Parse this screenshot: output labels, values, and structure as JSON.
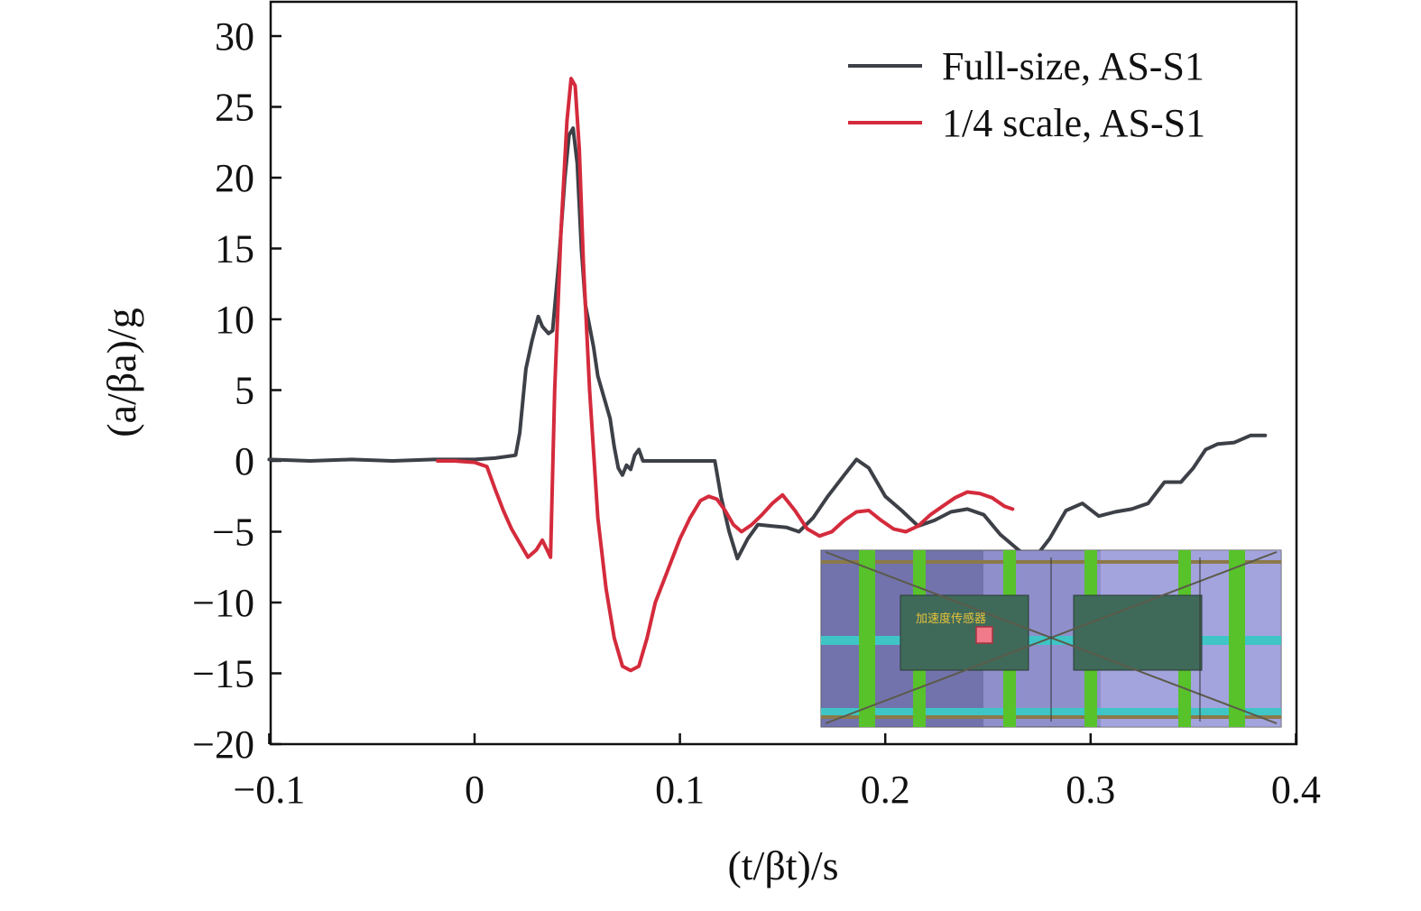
{
  "chart_data": {
    "type": "line",
    "title": "",
    "xlabel": "(t/βt)/s",
    "ylabel": "(a/βa)/g",
    "xlim": [
      -0.1,
      0.4
    ],
    "ylim": [
      -20,
      32
    ],
    "xticks": [
      -0.1,
      0,
      0.1,
      0.2,
      0.3,
      0.4
    ],
    "xtick_labels": [
      "−0.1",
      "0",
      "0.1",
      "0.2",
      "0.3",
      "0.4"
    ],
    "yticks": [
      -20,
      -15,
      -10,
      -5,
      0,
      5,
      10,
      15,
      20,
      25,
      30
    ],
    "ytick_labels": [
      "−20",
      "−15",
      "−10",
      "−5",
      "0",
      "5",
      "10",
      "15",
      "20",
      "25",
      "30"
    ],
    "grid": false,
    "legend_position": "top-right",
    "series": [
      {
        "name": "Full-size, AS-S1",
        "color": "#3d4047",
        "x": [
          -0.1,
          -0.08,
          -0.06,
          -0.04,
          -0.02,
          0.0,
          0.01,
          0.02,
          0.022,
          0.025,
          0.028,
          0.031,
          0.033,
          0.036,
          0.038,
          0.041,
          0.044,
          0.046,
          0.048,
          0.05,
          0.052,
          0.054,
          0.056,
          0.058,
          0.06,
          0.063,
          0.066,
          0.068,
          0.07,
          0.072,
          0.074,
          0.076,
          0.078,
          0.08,
          0.082,
          0.09,
          0.1,
          0.11,
          0.117,
          0.12,
          0.124,
          0.128,
          0.133,
          0.138,
          0.145,
          0.152,
          0.158,
          0.165,
          0.172,
          0.18,
          0.186,
          0.192,
          0.2,
          0.208,
          0.216,
          0.224,
          0.232,
          0.24,
          0.248,
          0.256,
          0.265,
          0.272,
          0.28,
          0.288,
          0.296,
          0.304,
          0.312,
          0.32,
          0.328,
          0.336,
          0.344,
          0.35,
          0.356,
          0.362,
          0.37,
          0.378,
          0.385
        ],
        "values": [
          0.1,
          0.0,
          0.1,
          0.0,
          0.1,
          0.1,
          0.2,
          0.4,
          2.0,
          6.5,
          8.5,
          10.2,
          9.5,
          9.0,
          9.2,
          14.0,
          20.0,
          23.0,
          23.5,
          21.0,
          15.0,
          11.0,
          9.5,
          8.0,
          6.0,
          4.5,
          3.0,
          1.0,
          -0.5,
          -1.0,
          -0.3,
          -0.6,
          0.4,
          0.8,
          0.0,
          0.0,
          0.0,
          0.0,
          0.0,
          -2.5,
          -5.0,
          -6.9,
          -5.5,
          -4.5,
          -4.6,
          -4.7,
          -5.0,
          -4.0,
          -2.5,
          -1.0,
          0.1,
          -0.5,
          -2.5,
          -3.5,
          -4.6,
          -4.2,
          -3.6,
          -3.4,
          -3.8,
          -5.2,
          -6.3,
          -7.0,
          -5.5,
          -3.5,
          -3.0,
          -3.9,
          -3.6,
          -3.4,
          -3.0,
          -1.5,
          -1.5,
          -0.5,
          0.8,
          1.2,
          1.3,
          1.8,
          1.8
        ]
      },
      {
        "name": "1/4 scale, AS-S1",
        "color": "#d42b3c",
        "x": [
          -0.018,
          -0.01,
          0.0,
          0.006,
          0.01,
          0.014,
          0.018,
          0.022,
          0.026,
          0.03,
          0.033,
          0.035,
          0.037,
          0.039,
          0.042,
          0.045,
          0.047,
          0.049,
          0.051,
          0.053,
          0.056,
          0.06,
          0.064,
          0.068,
          0.072,
          0.076,
          0.08,
          0.084,
          0.088,
          0.092,
          0.096,
          0.1,
          0.105,
          0.11,
          0.114,
          0.118,
          0.122,
          0.126,
          0.13,
          0.135,
          0.14,
          0.145,
          0.15,
          0.156,
          0.162,
          0.168,
          0.174,
          0.18,
          0.186,
          0.192,
          0.198,
          0.204,
          0.21,
          0.216,
          0.222,
          0.228,
          0.234,
          0.24,
          0.246,
          0.252,
          0.258,
          0.262
        ],
        "values": [
          0.0,
          0.0,
          -0.1,
          -0.4,
          -2.0,
          -3.5,
          -4.8,
          -5.8,
          -6.8,
          -6.3,
          -5.6,
          -6.2,
          -6.8,
          5.0,
          16.0,
          24.0,
          27.0,
          26.5,
          22.0,
          14.0,
          5.0,
          -4.0,
          -9.0,
          -12.5,
          -14.5,
          -14.8,
          -14.5,
          -12.5,
          -10.0,
          -8.5,
          -7.0,
          -5.5,
          -4.0,
          -2.8,
          -2.5,
          -2.7,
          -3.5,
          -4.5,
          -5.0,
          -4.5,
          -3.8,
          -3.0,
          -2.4,
          -3.5,
          -4.8,
          -5.3,
          -5.0,
          -4.2,
          -3.6,
          -3.5,
          -4.2,
          -4.8,
          -5.0,
          -4.6,
          -3.8,
          -3.2,
          -2.6,
          -2.2,
          -2.3,
          -2.6,
          -3.2,
          -3.4
        ]
      }
    ],
    "inset": {
      "label": "加速度传感器"
    }
  }
}
